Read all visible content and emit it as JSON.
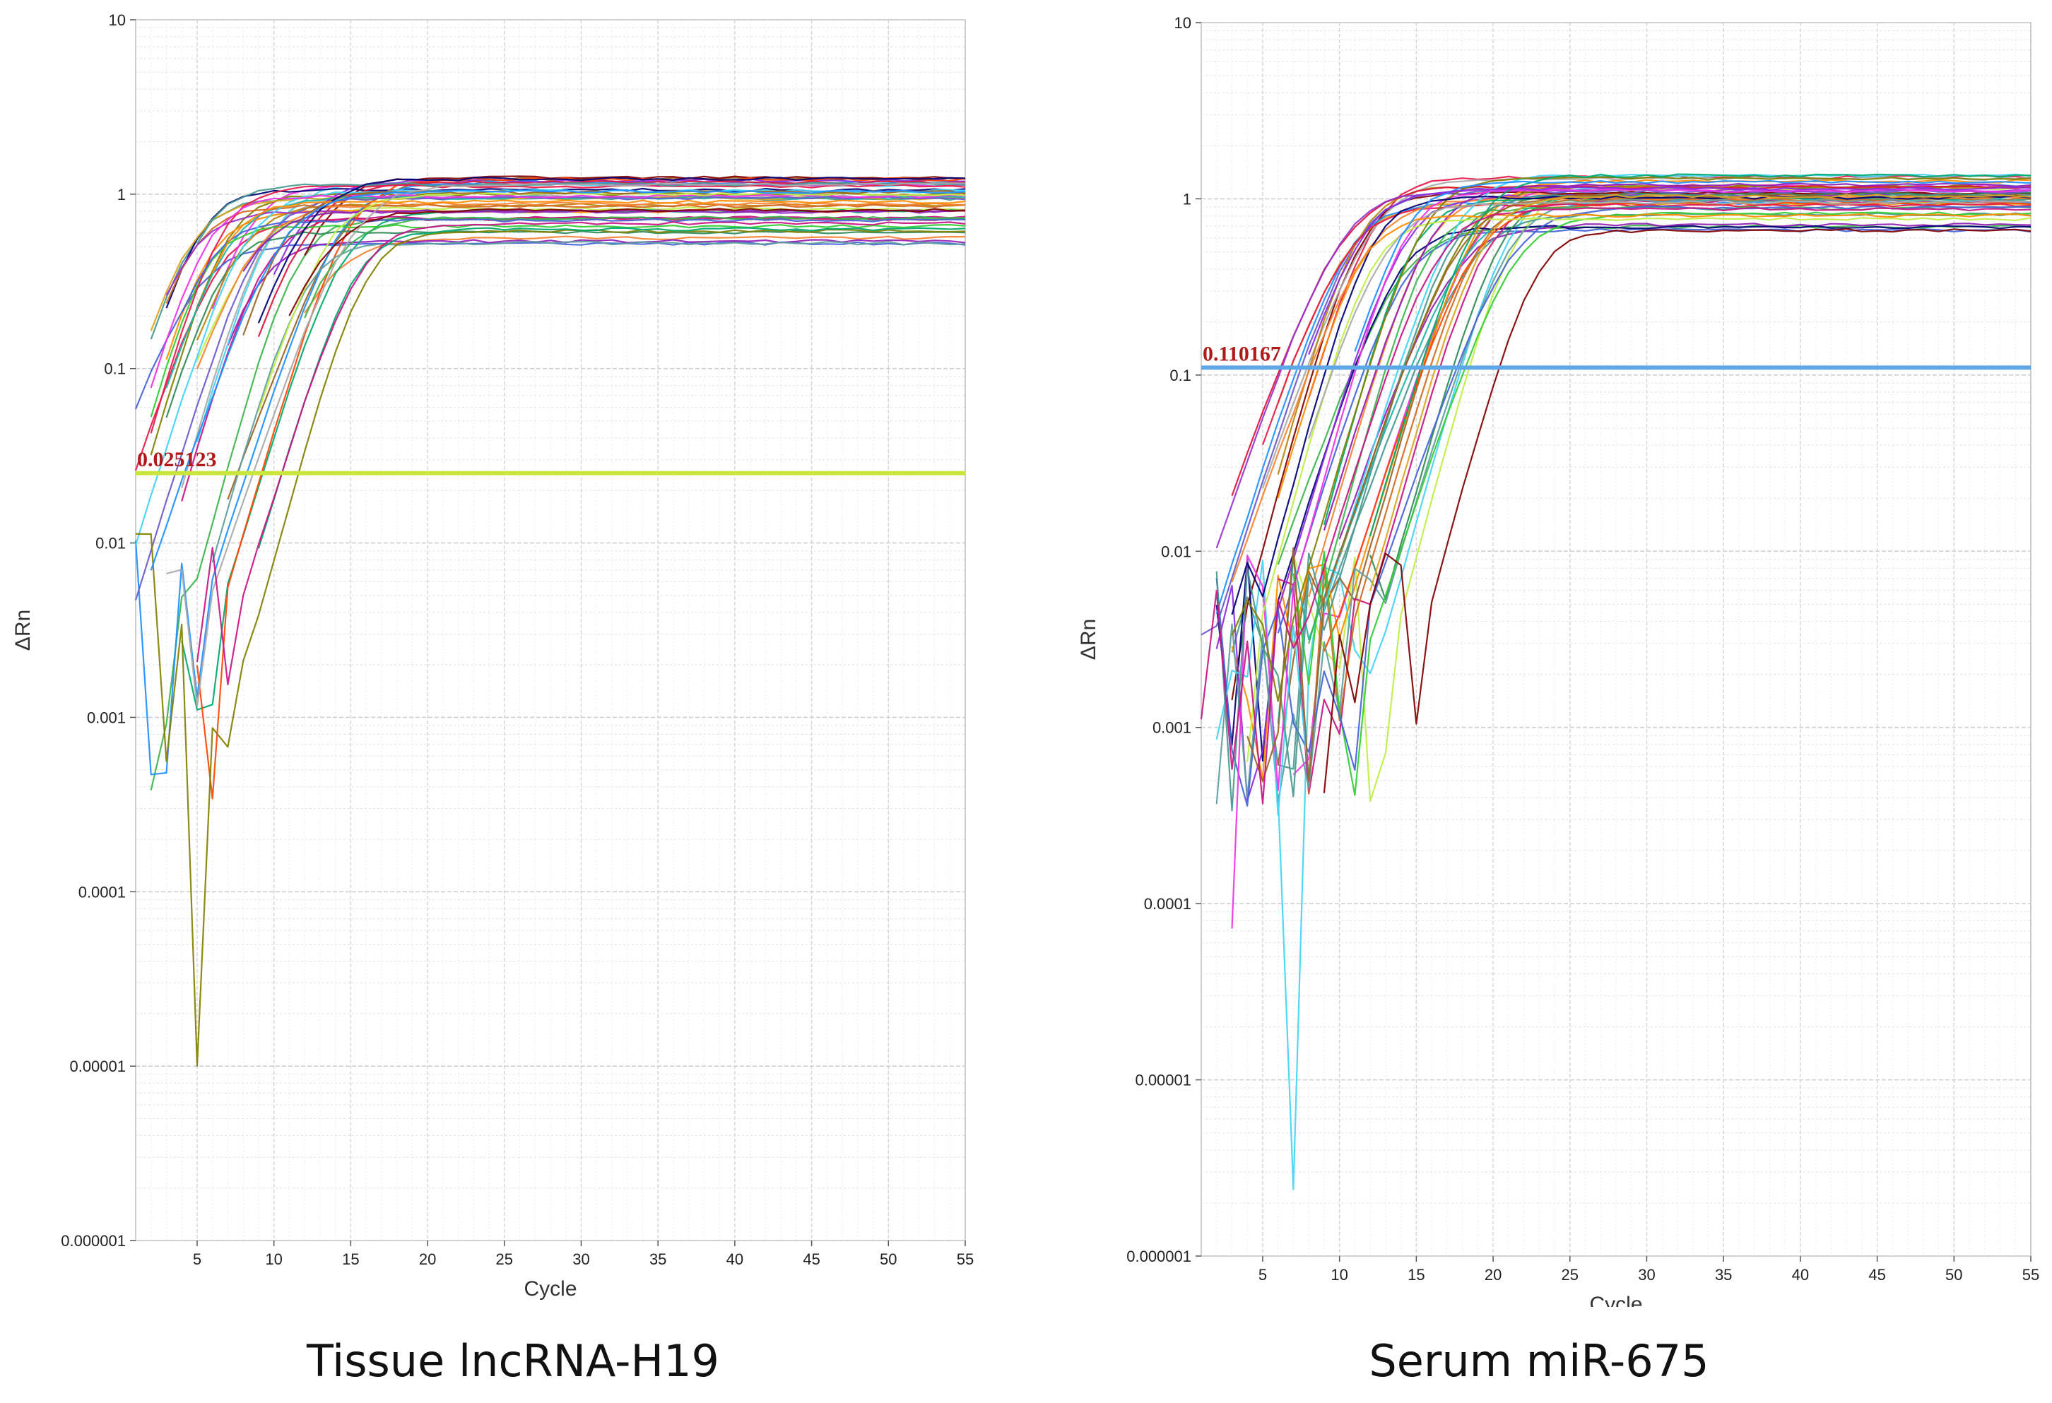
{
  "colors": {
    "palette": [
      "#e6194b",
      "#3cb44b",
      "#4363d8",
      "#f58231",
      "#911eb4",
      "#42d4f4",
      "#f032e6",
      "#bfef45",
      "#469990",
      "#9a6324",
      "#800000",
      "#808000",
      "#000075",
      "#a9a9a9",
      "#ff8c00",
      "#00a86b",
      "#c71585",
      "#1e90ff",
      "#daa520",
      "#8a2be2",
      "#20b2aa",
      "#ff4500",
      "#2e8b57",
      "#6a5acd",
      "#b8860b",
      "#d2691e",
      "#5f9ea0",
      "#dc143c",
      "#32cd32",
      "#9932cc"
    ],
    "threshold_label": "#b01a1a",
    "grid": "#d9d9d9"
  },
  "chart_data": [
    {
      "type": "line",
      "caption": "Tissue lncRNA-H19",
      "xlabel": "Cycle",
      "ylabel": "ΔRn",
      "yscale": "log",
      "xlim": [
        1,
        55
      ],
      "ylim": [
        1e-06,
        10
      ],
      "x_ticks": [
        5,
        10,
        15,
        20,
        25,
        30,
        35,
        40,
        45,
        50,
        55
      ],
      "y_ticks": [
        {
          "value": 10,
          "label": "10"
        },
        {
          "value": 1,
          "label": "1"
        },
        {
          "value": 0.1,
          "label": "0.1"
        },
        {
          "value": 0.01,
          "label": "0.01"
        },
        {
          "value": 0.001,
          "label": "0.001"
        },
        {
          "value": 0.0001,
          "label": "0.0001"
        },
        {
          "value": 1e-05,
          "label": "0.00001"
        },
        {
          "value": 1e-06,
          "label": "0.000001"
        }
      ],
      "threshold": {
        "value": 0.025123,
        "label": "0.025123",
        "color": "#c8e63c"
      },
      "curves": {
        "count": 48,
        "ct_min": 9.5,
        "ct_max": 21.5,
        "plateau_min": 0.52,
        "plateau_max": 1.25,
        "noise_level": 0.0025,
        "seed": 11
      }
    },
    {
      "type": "line",
      "caption": "Serum miR-675",
      "xlabel": "Cycle",
      "ylabel": "ΔRn",
      "yscale": "log",
      "xlim": [
        1,
        55
      ],
      "ylim": [
        1e-06,
        10
      ],
      "x_ticks": [
        5,
        10,
        15,
        20,
        25,
        30,
        35,
        40,
        45,
        50,
        55
      ],
      "y_ticks": [
        {
          "value": 10,
          "label": "10"
        },
        {
          "value": 1,
          "label": "1"
        },
        {
          "value": 0.1,
          "label": "0.1"
        },
        {
          "value": 0.01,
          "label": "0.01"
        },
        {
          "value": 0.001,
          "label": "0.001"
        },
        {
          "value": 0.0001,
          "label": "0.0001"
        },
        {
          "value": 1e-05,
          "label": "0.00001"
        },
        {
          "value": 1e-06,
          "label": "0.000001"
        }
      ],
      "threshold": {
        "value": 0.110167,
        "label": "0.110167",
        "color": "#5fa8e8"
      },
      "curves": {
        "count": 50,
        "ct_min": 13.5,
        "ct_max": 25.0,
        "plateau_min": 0.6,
        "plateau_max": 1.4,
        "noise_level": 0.002,
        "seed": 29
      }
    }
  ]
}
